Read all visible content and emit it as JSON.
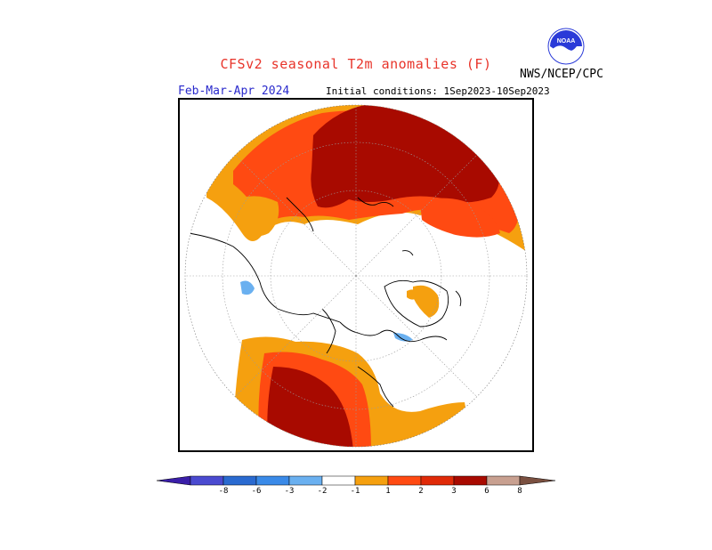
{
  "header": {
    "title": "CFSv2 seasonal T2m anomalies (F)",
    "agency": "NWS/NCEP/CPC",
    "logo_text": "NOAA",
    "period": "Feb-Mar-Apr 2024",
    "initial_conditions": "Initial conditions: 1Sep2023-10Sep2023"
  },
  "legend": {
    "labels": [
      "-8",
      "-6",
      "-3",
      "-2",
      "-1",
      "1",
      "2",
      "3",
      "6",
      "8"
    ],
    "colors": [
      "#3a1ea8",
      "#4a4ad0",
      "#2a6ad0",
      "#3a8ae8",
      "#6ab0f0",
      "#ffffff",
      "#f5a00f",
      "#ff4a12",
      "#e02a08",
      "#a80a00",
      "#c8a090",
      "#7a5040"
    ]
  },
  "map": {
    "projection": "north-polar-stereographic",
    "anomaly_colors": {
      "warm1": "#f5a00f",
      "warm2": "#ff4a12",
      "warm3": "#a80a00",
      "cool1": "#6ab0f0"
    }
  }
}
